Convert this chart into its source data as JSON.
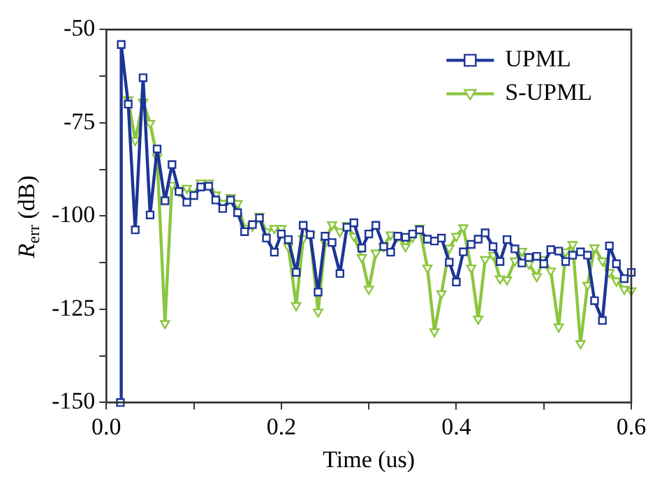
{
  "chart_data": {
    "type": "line",
    "xlabel": "Time (us)",
    "ylabel": "R$_{err}$ (dB)",
    "x": [
      0.025,
      0.033,
      0.042,
      0.05,
      0.058,
      0.067,
      0.075,
      0.083,
      0.092,
      0.1,
      0.108,
      0.117,
      0.125,
      0.133,
      0.142,
      0.15,
      0.158,
      0.167,
      0.175,
      0.183,
      0.192,
      0.2,
      0.208,
      0.217,
      0.225,
      0.233,
      0.242,
      0.25,
      0.258,
      0.267,
      0.275,
      0.283,
      0.292,
      0.3,
      0.308,
      0.317,
      0.325,
      0.333,
      0.342,
      0.35,
      0.358,
      0.367,
      0.375,
      0.383,
      0.392,
      0.4,
      0.408,
      0.417,
      0.425,
      0.433,
      0.442,
      0.45,
      0.458,
      0.467,
      0.475,
      0.483,
      0.492,
      0.5,
      0.508,
      0.517,
      0.525,
      0.533,
      0.542,
      0.55,
      0.558,
      0.567,
      0.575,
      0.583,
      0.592,
      0.6
    ],
    "series": [
      {
        "name": "UPML",
        "color": "#1c3596",
        "marker": "square",
        "x": [
          0.016,
          0.017,
          0.025,
          0.033,
          0.042,
          0.05,
          0.058,
          0.067,
          0.075,
          0.083,
          0.092,
          0.1,
          0.108,
          0.117,
          0.125,
          0.133,
          0.142,
          0.15,
          0.158,
          0.167,
          0.175,
          0.183,
          0.192,
          0.2,
          0.208,
          0.217,
          0.225,
          0.233,
          0.242,
          0.25,
          0.258,
          0.267,
          0.275,
          0.283,
          0.292,
          0.3,
          0.308,
          0.317,
          0.325,
          0.333,
          0.342,
          0.35,
          0.358,
          0.367,
          0.375,
          0.383,
          0.392,
          0.4,
          0.408,
          0.417,
          0.425,
          0.433,
          0.442,
          0.45,
          0.458,
          0.467,
          0.475,
          0.483,
          0.492,
          0.5,
          0.508,
          0.517,
          0.525,
          0.533,
          0.542,
          0.55,
          0.558,
          0.567,
          0.575,
          0.583,
          0.592,
          0.6
        ],
        "values": [
          -150,
          -54,
          -70,
          -103.7,
          -62.9,
          -99.7,
          -82,
          -95.9,
          -86.2,
          -93.4,
          -96.3,
          -94.5,
          -92.2,
          -92,
          -95.7,
          -98,
          -95.7,
          -99.1,
          -104.2,
          -102.3,
          -100.5,
          -105.9,
          -109.7,
          -104.8,
          -106.3,
          -115.1,
          -102.5,
          -105,
          -120.4,
          -105.4,
          -107.1,
          -115.4,
          -103,
          -101.8,
          -108.6,
          -104.8,
          -102.5,
          -108.2,
          -109.7,
          -105.4,
          -105.7,
          -104.8,
          -103.7,
          -106.2,
          -106.7,
          -105.9,
          -112.4,
          -117.7,
          -109.6,
          -107.6,
          -106.2,
          -104.5,
          -108.2,
          -112.2,
          -106.3,
          -108.8,
          -112.6,
          -111.1,
          -110.8,
          -112.8,
          -109,
          -109.4,
          -112.2,
          -110.5,
          -109.6,
          -110.5,
          -122.7,
          -128,
          -108,
          -112.8,
          -116.8,
          -115.1
        ]
      },
      {
        "name": "S-UPML",
        "color": "#8cc63f",
        "marker": "triangle",
        "values": [
          -68.8,
          -79.7,
          -69.4,
          -75.1,
          -84.2,
          -128.8,
          -91.7,
          -93.4,
          -92.5,
          -94,
          -91.1,
          -91.1,
          -94.3,
          -96.6,
          -95,
          -96.6,
          -103.2,
          -102.7,
          -100,
          -104.2,
          -103.3,
          -103.3,
          -108.2,
          -124,
          -106,
          -105,
          -125.7,
          -107.1,
          -102.3,
          -104.2,
          -102.5,
          -105.4,
          -111.1,
          -119.6,
          -109.9,
          -108.2,
          -105,
          -105.4,
          -108.2,
          -105.7,
          -103.2,
          -113.9,
          -131,
          -120.8,
          -108.6,
          -105.4,
          -103.1,
          -113.9,
          -127.6,
          -111.6,
          -110.5,
          -116.8,
          -117.1,
          -112,
          -109.4,
          -112.8,
          -116.2,
          -111.6,
          -114.7,
          -129.7,
          -109.6,
          -107.6,
          -134.2,
          -118.5,
          -108.5,
          -112,
          -115.1,
          -117.4,
          -119.6,
          -120
        ]
      }
    ],
    "xlim": [
      0,
      0.6
    ],
    "xticks": [
      {
        "value": 0,
        "label": "0.0"
      },
      {
        "value": 0.1,
        "label": null
      },
      {
        "value": 0.2,
        "label": "0.2"
      },
      {
        "value": 0.3,
        "label": null
      },
      {
        "value": 0.4,
        "label": "0.4"
      },
      {
        "value": 0.5,
        "label": null
      },
      {
        "value": 0.6,
        "label": "0.6"
      }
    ],
    "ylim": [
      -150,
      -50
    ],
    "yticks": [
      -150,
      {
        "value": -137.5,
        "label": null
      },
      -125,
      {
        "value": -112.5,
        "label": null
      },
      -100,
      {
        "value": -87.5,
        "label": null
      },
      -75,
      {
        "value": -62.5,
        "label": null
      },
      -50
    ],
    "grid": false,
    "legend": "top right",
    "line_style": "solid"
  }
}
